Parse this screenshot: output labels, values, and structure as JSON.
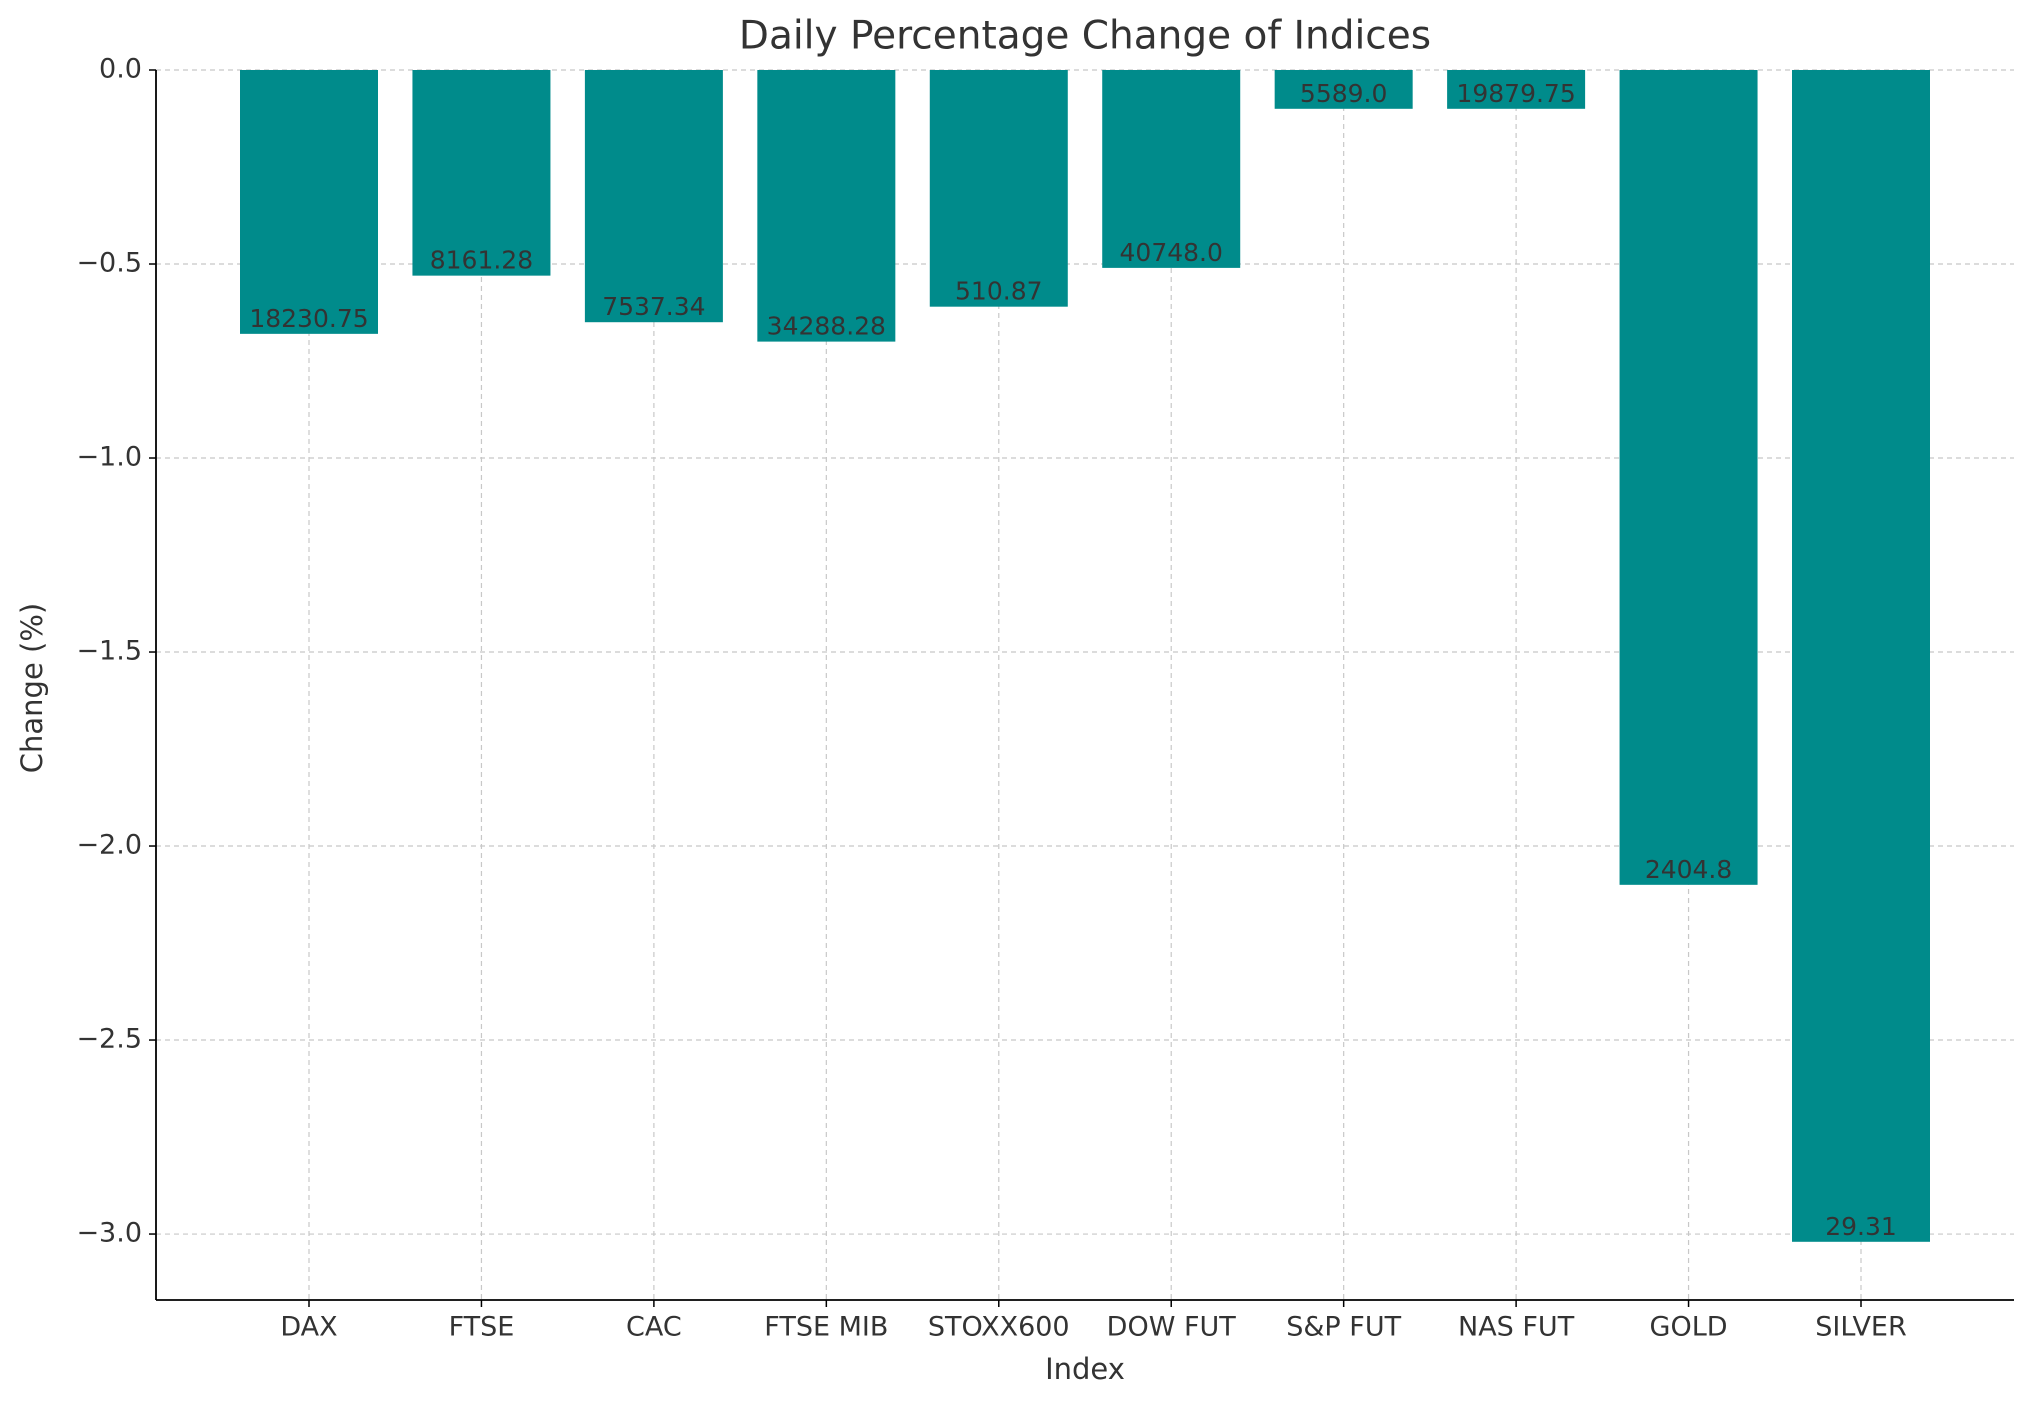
{
  "chart_data": {
    "type": "bar",
    "title": "Daily Percentage Change of Indices",
    "x_label": "Index",
    "y_label": "Change (%)",
    "categories": [
      "DAX",
      "FTSE",
      "CAC",
      "FTSE MIB",
      "STOXX600",
      "DOW FUT",
      "S&P FUT",
      "NAS FUT",
      "GOLD",
      "SILVER"
    ],
    "values": [
      -0.68,
      -0.53,
      -0.65,
      -0.7,
      -0.61,
      -0.51,
      -0.1,
      -0.1,
      -2.1,
      -3.02
    ],
    "bar_labels": [
      "18230.75",
      "8161.28",
      "7537.34",
      "34288.28",
      "510.87",
      "40748.0",
      "5589.0",
      "19879.75",
      "2404.8",
      "29.31"
    ],
    "color": "#008b8b",
    "ylim": [
      -3.17,
      0
    ],
    "yticks": [
      {
        "value": 0,
        "label": "0.0"
      },
      {
        "value": -0.5,
        "label": "−0.5"
      },
      {
        "value": -1,
        "label": "−1.0"
      },
      {
        "value": -1.5,
        "label": "−1.5"
      },
      {
        "value": -2,
        "label": "−2.0"
      },
      {
        "value": -2.5,
        "label": "−2.5"
      },
      {
        "value": -3,
        "label": "−3.0"
      }
    ],
    "grid": true
  }
}
